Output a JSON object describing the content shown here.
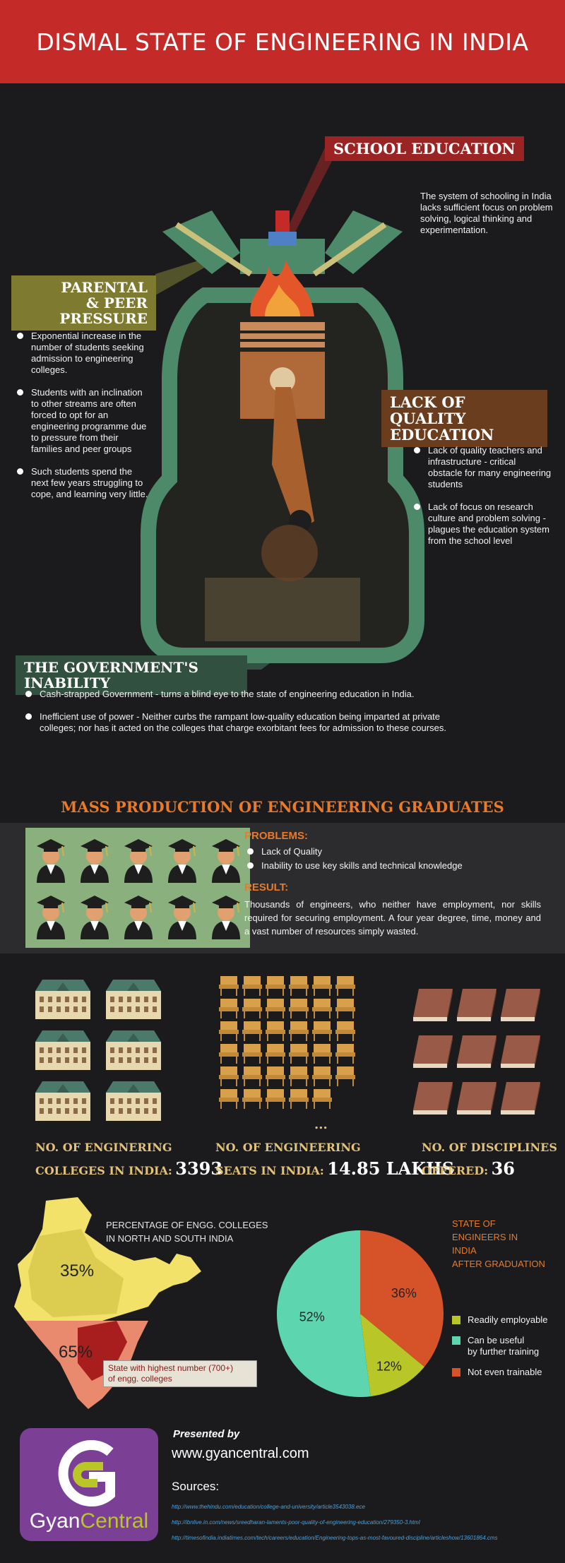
{
  "header": {
    "title": "DISMAL STATE OF ENGINEERING IN INDIA"
  },
  "colors": {
    "header_red": "#c42a27",
    "engine_green": "#4c8a6a",
    "pie_red": "#d6532a",
    "pie_teal": "#5dd6b0",
    "pie_lime": "#b8c628",
    "stat_gold": "#e2c27a",
    "section_orange": "#e87a2a"
  },
  "engine": {
    "school": {
      "title": "SCHOOL EDUCATION",
      "text": "The system of schooling in India lacks sufficient focus on problem solving, logical thinking and experimentation."
    },
    "parental": {
      "title_line1": "PARENTAL",
      "title_line2": "& PEER PRESSURE",
      "bullets": [
        "Exponential increase in the number of students seeking admission to engineering colleges.",
        "Students with an inclination to other streams are often forced to opt for an engineering programme due to pressure from their families and peer groups",
        "Such students spend the next few years struggling to cope, and learning very little."
      ]
    },
    "quality": {
      "title_line1": "LACK OF",
      "title_line2": "QUALITY EDUCATION",
      "bullets": [
        "Lack of quality teachers and infrastructure - critical obstacle for many engineering students",
        "Lack of focus on research culture and problem solving - plagues the education system from the school level"
      ]
    },
    "government": {
      "title": "THE GOVERNMENT'S INABILITY",
      "bullets": [
        "Cash-strapped Government - turns a blind eye to the state of engineering education in India.",
        "Inefficient use of power - Neither curbs the rampant low-quality education being imparted at private colleges; nor has it acted on the colleges that charge exorbitant fees for admission to these courses."
      ]
    }
  },
  "mass": {
    "title": "MASS PRODUCTION OF ENGINEERING GRADUATES",
    "problems_title": "PROBLEMS:",
    "problems": [
      "Lack of Quality",
      "Inability to use key skills and technical knowledge"
    ],
    "result_title": "RESULT:",
    "result_text": "Thousands of engineers, who neither have employment, nor skills required for securing employment. A four year degree, time, money and a vast number of resources simply wasted."
  },
  "stats": {
    "colleges": {
      "line1": "NO. OF ENGINERING",
      "line2": "COLLEGES IN INDIA:",
      "value": "3393"
    },
    "seats": {
      "line1": "NO. OF ENGINEERING",
      "line2": "SEATS IN INDIA:",
      "value": "14.85 LAKHS",
      "ellipsis": "..."
    },
    "disciplines": {
      "line1": "NO. OF DISCIPLINES",
      "line2": "OFFERED:",
      "value": "36"
    }
  },
  "map": {
    "title_line1": "PERCENTAGE OF ENGG. COLLEGES",
    "title_line2": "IN NORTH AND SOUTH INDIA",
    "north_pct": "35%",
    "south_pct": "65%",
    "callout_line1": "State with highest number (700+)",
    "callout_line2": "of engg. colleges"
  },
  "chart_data": {
    "type": "pie",
    "title": "STATE OF ENGINEERS IN INDIA AFTER GRADUATION",
    "title_lines": [
      "STATE OF",
      "ENGINEERS IN",
      "INDIA",
      "AFTER GRADUATION"
    ],
    "slices": [
      {
        "label": "Readily employable",
        "value": 12,
        "display": "12%",
        "color": "#b8c628"
      },
      {
        "label": "Can be useful by further training",
        "label_lines": [
          "Can be useful",
          "by further training"
        ],
        "value": 52,
        "display": "52%",
        "color": "#5dd6b0"
      },
      {
        "label": "Not even trainable",
        "value": 36,
        "display": "36%",
        "color": "#d6532a"
      }
    ],
    "legend_placement": "right"
  },
  "footer": {
    "logo_text_1": "Gyan",
    "logo_text_2": "Central",
    "presented_by": "Presented by",
    "website": "www.gyancentral.com",
    "sources_title": "Sources:",
    "sources": [
      "http://www.thehindu.com/education/college-and-university/article3543038.ece",
      "http://ibnlive.in.com/news/sreedharan-laments-poor-quality-of-engineering-education/279350-3.html",
      "http://timesofindia.indiatimes.com/tech/careers/education/Engineering-tops-as-most-favoured-discipline/articleshow/13601864.cms"
    ]
  }
}
